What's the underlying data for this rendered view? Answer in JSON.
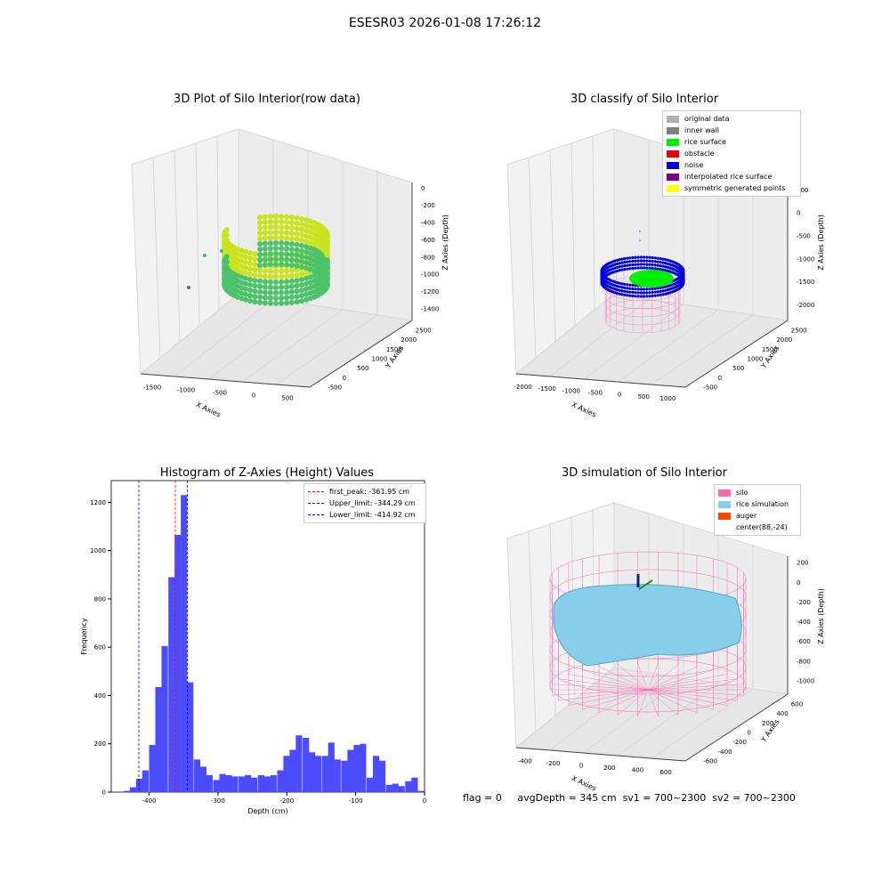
{
  "suptitle": "ESESR03 2026-01-08 17:26:12",
  "chart_data": [
    {
      "type": "scatter",
      "title": "3D Plot of Silo Interior(row data)",
      "xlabel": "X Axies",
      "ylabel": "Y Axies",
      "zlabel": "Z Axies (Depth)",
      "x_ticks": [
        "-1500",
        "-1000",
        "-500",
        "0",
        "500"
      ],
      "y_ticks": [
        "-500",
        "0",
        "500",
        "1000",
        "1500",
        "2000",
        "2500"
      ],
      "z_ticks": [
        "0",
        "-200",
        "-400",
        "-600",
        "-800",
        "-1000",
        "-1200",
        "-1400"
      ]
    },
    {
      "type": "scatter",
      "title": "3D classify of Silo Interior",
      "xlabel": "X Axies",
      "ylabel": "Y Axies",
      "zlabel": "Z Axies (Depth)",
      "x_ticks": [
        "-2000",
        "-1500",
        "-1000",
        "-500",
        "0",
        "500",
        "1000"
      ],
      "y_ticks": [
        "-500",
        "0",
        "500",
        "1000",
        "1500",
        "2000",
        "2500"
      ],
      "z_ticks": [
        "500",
        "0",
        "-500",
        "-1000",
        "-1500",
        "-2000"
      ],
      "legend": [
        {
          "name": "original data",
          "color": "#b0b0b0"
        },
        {
          "name": "inner wall",
          "color": "#808080"
        },
        {
          "name": "rice surface",
          "color": "#00ee00"
        },
        {
          "name": "obstacle",
          "color": "#ee0000"
        },
        {
          "name": "noise",
          "color": "#0000dd"
        },
        {
          "name": "interpolated rice surface",
          "color": "#800080"
        },
        {
          "name": "symmetric generated points",
          "color": "#ffff00"
        }
      ]
    },
    {
      "type": "bar",
      "title": "Histogram of Z-Axies (Height) Values",
      "xlabel": "Depth (cm)",
      "ylabel": "Frequency",
      "xlim": [
        -455,
        0
      ],
      "ylim": [
        0,
        1290
      ],
      "bin_width": 9.3,
      "x_ticks": [
        -400,
        -300,
        -200,
        -100,
        0
      ],
      "y_ticks": [
        0,
        200,
        400,
        600,
        800,
        1000,
        1200
      ],
      "bins_start": [
        -437,
        -428,
        -419,
        -410,
        -400,
        -391,
        -382,
        -372,
        -363,
        -354,
        -345,
        -335,
        -326,
        -317,
        -307,
        -298,
        -289,
        -280,
        -270,
        -261,
        -252,
        -242,
        -233,
        -224,
        -214,
        -205,
        -196,
        -187,
        -177,
        -168,
        -159,
        -149,
        -140,
        -131,
        -121,
        -112,
        -103,
        -94,
        -84,
        -75,
        -66,
        -56,
        -47,
        -38,
        -28,
        -19,
        -10
      ],
      "values": [
        5,
        20,
        55,
        90,
        195,
        435,
        605,
        890,
        1065,
        1230,
        455,
        135,
        105,
        70,
        50,
        75,
        70,
        65,
        65,
        70,
        60,
        70,
        65,
        70,
        90,
        150,
        175,
        235,
        225,
        165,
        150,
        150,
        205,
        135,
        130,
        175,
        195,
        200,
        60,
        150,
        130,
        30,
        35,
        25,
        45,
        60,
        5
      ],
      "vlines": [
        {
          "name": "first_peak: -361.95 cm",
          "x": -361.95,
          "color": "#ff0000"
        },
        {
          "name": "Upper_limit: -344.29 cm",
          "x": -344.29,
          "color": "#0000ff"
        },
        {
          "name": "Lower_limit: -414.92 cm",
          "x": -414.92,
          "color": "#0000ff"
        }
      ],
      "bar_color": "#4b4bff"
    },
    {
      "type": "scatter",
      "title": "3D simulation of Silo Interior",
      "xlabel": "X Axies",
      "ylabel": "Y Axies",
      "zlabel": "Z Axies (Depth)",
      "x_ticks": [
        "-400",
        "-200",
        "0",
        "200",
        "400",
        "600"
      ],
      "y_ticks": [
        "-600",
        "-400",
        "-200",
        "0",
        "200",
        "400",
        "600"
      ],
      "z_ticks": [
        "200",
        "0",
        "-200",
        "-400",
        "-600",
        "-800",
        "-1000"
      ],
      "legend": [
        {
          "name": "silo",
          "color": "#ff69b4"
        },
        {
          "name": "rice simulation",
          "color": "#87ceeb"
        },
        {
          "name": "auger",
          "color": "#ff4500"
        },
        {
          "name": "center(88,-24)",
          "color": ""
        }
      ]
    }
  ],
  "footer": {
    "flag": "flag = 0",
    "avg": "avgDepth = 345 cm",
    "sv1": "sv1 = 700~2300",
    "sv2": "sv2 = 700~2300"
  }
}
